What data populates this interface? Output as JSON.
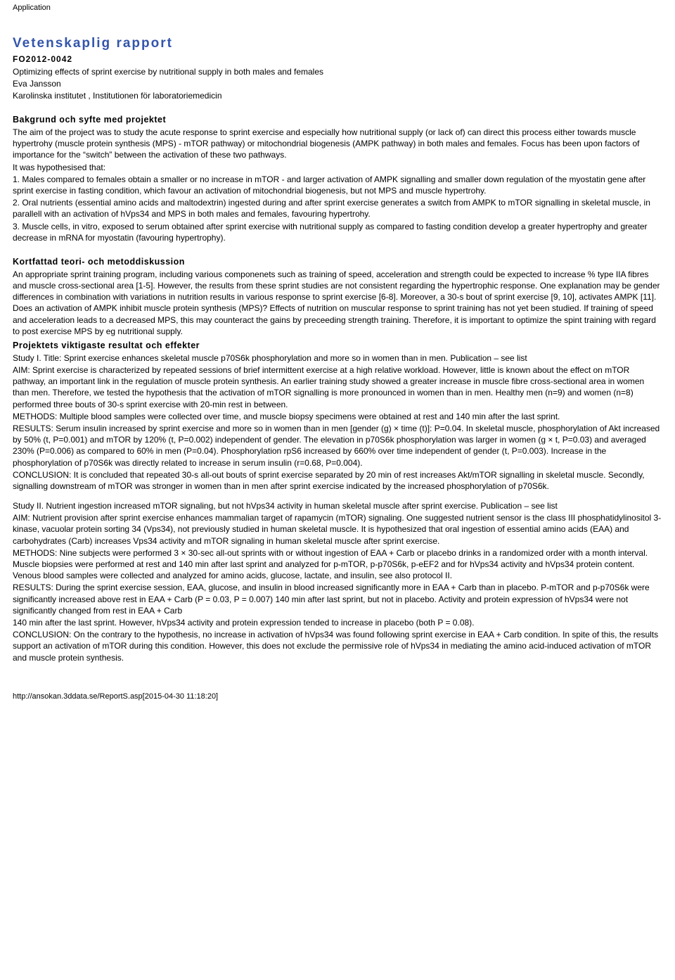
{
  "app_label": "Application",
  "title": "Vetenskaplig rapport",
  "project_id": "FO2012-0042",
  "project_title": "Optimizing effects of sprint exercise by nutritional supply in both males and females",
  "author": "Eva Jansson",
  "affiliation": "Karolinska institutet , Institutionen för laboratoriemedicin",
  "section1": {
    "heading": "Bakgrund och syfte med projektet",
    "p1": "The aim of the project was to study the acute response to sprint exercise and especially how nutritional supply (or lack of) can direct this process either towards muscle hypertrohy (muscle protein synthesis (MPS) - mTOR pathway) or mitochondrial biogenesis (AMPK pathway) in both males and females. Focus has been upon factors of importance for the “switch” between the activation of these two pathways.",
    "p2": "It was hypothesised that:",
    "p3": "1. Males compared to females obtain a smaller or no increase in mTOR - and larger activation of AMPK signalling and smaller down regulation of the myostatin gene after sprint exercise in fasting condition, which favour an activation of mitochondrial biogenesis, but not MPS and muscle hypertrohy.",
    "p4": "2. Oral nutrients (essential amino acids and maltodextrin) ingested during and after sprint exercise generates a switch from AMPK to mTOR signalling in skeletal muscle, in parallell with an activation of hVps34 and MPS in both males and females, favouring hypertrohy.",
    "p5": "3. Muscle cells, in vitro, exposed to serum obtained after sprint exercise with nutritional supply as compared to fasting condition develop a greater hypertrophy and greater decrease in mRNA for myostatin (favouring hypertrophy)."
  },
  "section2": {
    "heading": "Kortfattad teori- och metoddiskussion",
    "p1": "An appropriate sprint training program, including various componenets such as training of speed, acceleration and strength could be expected to increase % type IIA fibres and muscle cross-sectional area [1-5]. However, the results from these sprint studies are not consistent regarding the hypertrophic response. One explanation may be gender differences in combination with variations in nutrition results in various response to sprint exercise [6-8]. Moreover, a 30-s bout of sprint exercise [9, 10], activates AMPK [11]. Does an activation of AMPK inhibit muscle protein synthesis (MPS)? Effects of nutrition on muscular response to sprint training has not yet been studied. If training of speed and acceleration leads to a decreased MPS, this may counteract the gains by preceeding strength training. Therefore, it is important to optimize the spint training with regard to post exercise MPS by eg nutritional supply."
  },
  "section3": {
    "heading": "Projektets viktigaste resultat och effekter",
    "study1_title": "Study I. Title: Sprint exercise enhances skeletal muscle p70S6k phosphorylation and more so in women than in men. Publication – see list",
    "study1_aim": "AIM: Sprint exercise is characterized by repeated sessions of brief intermittent exercise at a high relative workload. However, little is known about the effect on mTOR pathway, an important link in the regulation of muscle protein synthesis. An earlier training study showed a greater increase in muscle fibre cross-sectional area in women than men. Therefore, we tested the hypothesis that the activation of mTOR signalling is more pronounced in women than in men. Healthy men (n=9) and women (n=8) performed three bouts of 30-s sprint exercise with 20-min rest in between.",
    "study1_methods": "METHODS: Multiple blood samples were collected over time, and muscle biopsy specimens were obtained at rest and 140 min after the last sprint.",
    "study1_results": "RESULTS: Serum insulin increased by sprint exercise and more so in women than in men [gender (g) × time (t)]: P=0.04. In skeletal muscle, phosphorylation of Akt increased by 50% (t, P=0.001) and mTOR by 120% (t, P=0.002) independent of gender. The elevation in p70S6k phosphorylation was larger in women (g × t, P=0.03) and averaged 230% (P=0.006) as compared to 60% in men (P=0.04). Phosphorylation rpS6 increased by 660% over time independent of gender (t, P=0.003). Increase in the phosphorylation of p70S6k was directly related to increase in serum insulin (r=0.68, P=0.004).",
    "study1_conclusion": "CONCLUSION: It is concluded that repeated 30-s all-out bouts of sprint exercise separated by 20 min of rest increases Akt/mTOR signalling in skeletal muscle. Secondly, signalling downstream of mTOR was stronger in women than in men after sprint exercise indicated by the increased phosphorylation of p70S6k.",
    "study2_title": "Study II. Nutrient ingestion increased mTOR signaling, but not hVps34 activity in human skeletal muscle after sprint exercise. Publication – see list",
    "study2_aim": "AIM: Nutrient provision after sprint exercise enhances mammalian target of rapamycin (mTOR) signaling. One suggested nutrient sensor is the class III phosphatidylinositol 3-kinase, vacuolar protein sorting 34 (Vps34), not previously studied in human skeletal muscle. It is hypothesized that oral ingestion of essential amino acids (EAA) and carbohydrates (Carb) increases Vps34 activity and mTOR signaling in human skeletal muscle after sprint exercise.",
    "study2_methods": "METHODS: Nine subjects were performed 3 × 30-sec all-out sprints with or without ingestion of EAA + Carb or placebo drinks in a randomized order with a month interval. Muscle biopsies were performed at rest and 140 min after last sprint and analyzed for p-mTOR, p-p70S6k, p-eEF2 and for hVps34 activity and hVps34 protein content. Venous blood samples were collected and analyzed for amino acids, glucose, lactate, and insulin, see also protocol II.",
    "study2_results": "RESULTS: During the sprint exercise session, EAA, glucose, and insulin in blood increased significantly more in EAA + Carb than in placebo. P-mTOR and p-p70S6k were significantly increased above rest in EAA + Carb (P = 0.03, P = 0.007) 140 min after last sprint, but not in placebo. Activity and protein expression of hVps34 were not significantly changed from rest in EAA + Carb",
    "study2_results2": "140 min after the last sprint. However, hVps34 activity and protein expression tended to increase in placebo (both P = 0.08).",
    "study2_conclusion": "CONCLUSION: On the contrary to the hypothesis, no increase in activation of hVps34 was found following sprint exercise in EAA + Carb condition. In spite of this, the results support an activation of mTOR during this condition. However, this does not exclude the permissive role of hVps34 in mediating the amino acid-induced activation of mTOR and muscle protein synthesis."
  },
  "footer_url": "http://ansokan.3ddata.se/ReportS.asp[2015-04-30 11:18:20]"
}
